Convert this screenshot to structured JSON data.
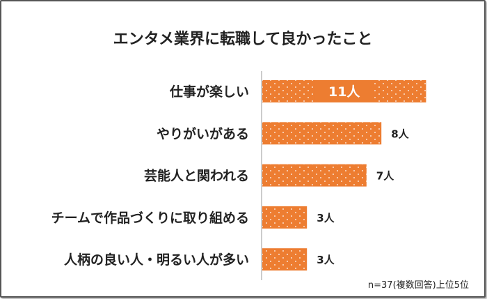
{
  "chart_data": {
    "type": "bar",
    "orientation": "horizontal",
    "title": "エンタメ業界に転職して良かったこと",
    "categories": [
      "仕事が楽しい",
      "やりがいがある",
      "芸能人と関われる",
      "チームで作品づくりに取り組める",
      "人柄の良い人・明るい人が多い"
    ],
    "values": [
      11,
      8,
      7,
      3,
      3
    ],
    "data_labels": [
      "11人",
      "8人",
      "7人",
      "3人",
      "3人"
    ],
    "unit": "人",
    "bar_color": "#ED7D31",
    "bar_pattern": "white dots",
    "note": "n=37(複数回答)上位5位"
  }
}
